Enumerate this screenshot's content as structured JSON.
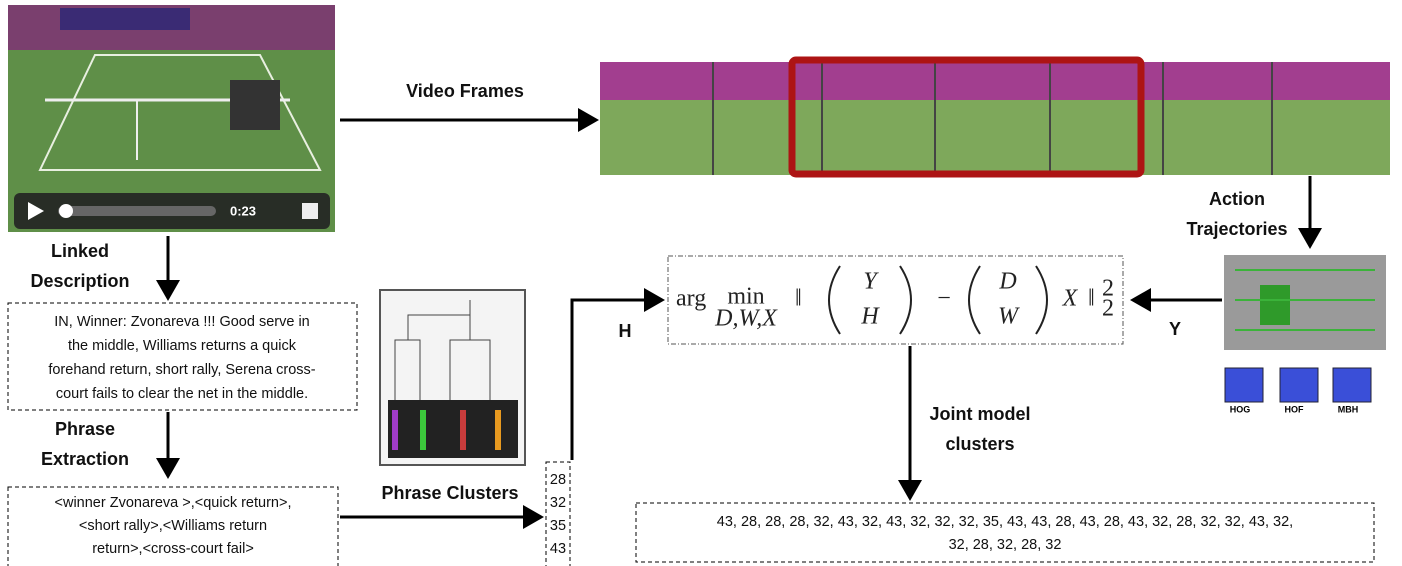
{
  "video": {
    "time": "0:23"
  },
  "labels": {
    "video_frames": "Video Frames",
    "linked_description": [
      "Linked",
      "Description"
    ],
    "phrase_extraction": [
      "Phrase",
      "Extraction"
    ],
    "phrase_clusters": "Phrase Clusters",
    "action_trajectories": [
      "Action",
      "Trajectories"
    ],
    "joint_model_clusters": [
      "Joint model",
      "clusters"
    ],
    "h": "H",
    "y": "Y"
  },
  "description": [
    "IN, Winner: Zvonareva !!! Good serve in",
    "the middle, Williams returns a quick",
    "forehand return, short rally, Serena cross-",
    "court fails to clear the net in the middle."
  ],
  "phrases": [
    "<winner Zvonareva >,<quick return>,",
    "<short rally>,<Williams  return",
    "return>,<cross-court fail>"
  ],
  "clusters": [
    "28",
    "32",
    "35",
    "43"
  ],
  "descriptors": [
    "HOG",
    "HOF",
    "MBH"
  ],
  "formula": {
    "arg": "arg",
    "min": "min",
    "sub": "D,W,X",
    "norm": "‖",
    "top_left": "Y",
    "bottom_left": "H",
    "minus": "−",
    "top_right": "D",
    "bottom_right": "W",
    "factor": "X",
    "norm_sub": "2",
    "norm_sup": "2"
  },
  "joint_clusters": [
    "43, 28, 28, 28, 32, 43, 32, 43, 32, 32, 32, 35, 43, 43, 28, 43, 28, 43, 32, 28, 32, 32, 43, 32,",
    "32, 28, 32, 28, 32"
  ]
}
